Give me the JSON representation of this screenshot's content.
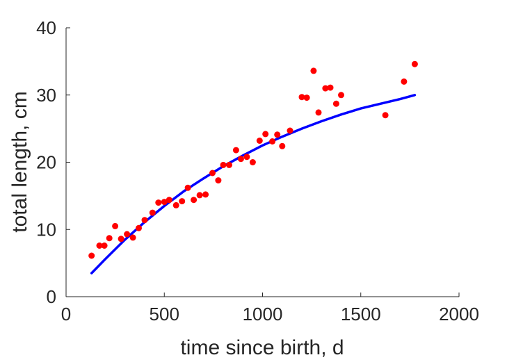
{
  "chart_data": {
    "type": "scatter",
    "title": "",
    "xlabel": "time since birth, d",
    "ylabel": "total length, cm",
    "xlim": [
      0,
      2000
    ],
    "ylim": [
      0,
      40
    ],
    "xticks": [
      0,
      500,
      1000,
      1500,
      2000
    ],
    "yticks": [
      0,
      10,
      20,
      30,
      40
    ],
    "grid": false,
    "legend": "none",
    "series": [
      {
        "kind": "scatter",
        "color": "#ff0000",
        "points": [
          [
            130,
            6.1
          ],
          [
            170,
            7.6
          ],
          [
            195,
            7.6
          ],
          [
            220,
            8.7
          ],
          [
            250,
            10.5
          ],
          [
            280,
            8.6
          ],
          [
            310,
            9.3
          ],
          [
            340,
            8.8
          ],
          [
            370,
            10.2
          ],
          [
            400,
            11.4
          ],
          [
            440,
            12.5
          ],
          [
            470,
            14.0
          ],
          [
            500,
            14.1
          ],
          [
            525,
            14.4
          ],
          [
            560,
            13.6
          ],
          [
            590,
            14.2
          ],
          [
            620,
            16.2
          ],
          [
            650,
            14.4
          ],
          [
            680,
            15.1
          ],
          [
            710,
            15.2
          ],
          [
            745,
            18.4
          ],
          [
            775,
            17.3
          ],
          [
            800,
            19.6
          ],
          [
            830,
            19.6
          ],
          [
            865,
            21.8
          ],
          [
            890,
            20.5
          ],
          [
            920,
            20.8
          ],
          [
            950,
            20.0
          ],
          [
            985,
            23.2
          ],
          [
            1015,
            24.2
          ],
          [
            1050,
            23.1
          ],
          [
            1075,
            24.1
          ],
          [
            1100,
            22.4
          ],
          [
            1140,
            24.7
          ],
          [
            1200,
            29.7
          ],
          [
            1225,
            29.6
          ],
          [
            1260,
            33.6
          ],
          [
            1285,
            27.4
          ],
          [
            1320,
            31.0
          ],
          [
            1345,
            31.1
          ],
          [
            1375,
            28.7
          ],
          [
            1400,
            30.0
          ],
          [
            1625,
            27.0
          ],
          [
            1720,
            32.0
          ],
          [
            1775,
            34.6
          ]
        ]
      },
      {
        "kind": "line",
        "color": "#0000ff",
        "x": [
          130,
          200,
          300,
          400,
          500,
          600,
          700,
          800,
          900,
          1000,
          1100,
          1200,
          1300,
          1400,
          1500,
          1600,
          1700,
          1775
        ],
        "y": [
          3.5,
          5.6,
          8.5,
          11.1,
          13.5,
          15.7,
          17.6,
          19.4,
          21.0,
          22.5,
          23.8,
          25.0,
          26.1,
          27.1,
          28.0,
          28.7,
          29.4,
          30.0
        ]
      }
    ]
  }
}
